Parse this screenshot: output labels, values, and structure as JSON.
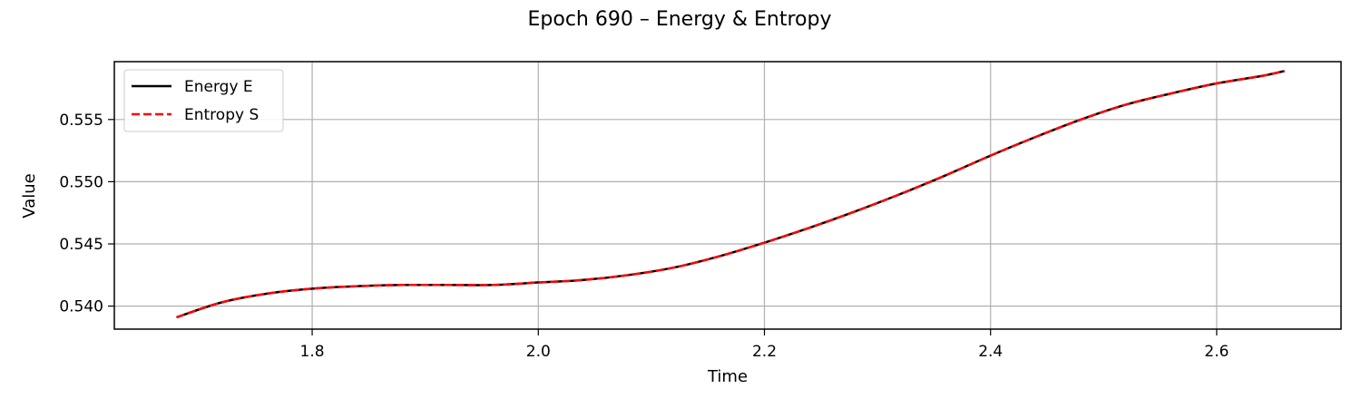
{
  "chart_data": {
    "type": "line",
    "title": "Epoch 690 – Energy & Entropy",
    "xlabel": "Time",
    "ylabel": "Value",
    "xlim": [
      1.625,
      2.71
    ],
    "ylim": [
      0.53815,
      0.55965
    ],
    "xticks": [
      1.8,
      2.0,
      2.2,
      2.4,
      2.6
    ],
    "xtick_labels": [
      "1.8",
      "2.0",
      "2.2",
      "2.4",
      "2.6"
    ],
    "yticks": [
      0.54,
      0.545,
      0.55,
      0.555
    ],
    "ytick_labels": [
      "0.540",
      "0.545",
      "0.550",
      "0.555"
    ],
    "grid": true,
    "legend_position": "upper left",
    "x": [
      1.68,
      1.72,
      1.76,
      1.8,
      1.84,
      1.88,
      1.92,
      1.96,
      2.0,
      2.04,
      2.08,
      2.12,
      2.16,
      2.2,
      2.24,
      2.28,
      2.32,
      2.36,
      2.4,
      2.44,
      2.48,
      2.52,
      2.56,
      2.6,
      2.64,
      2.66
    ],
    "series": [
      {
        "name": "Energy E",
        "color": "#000000",
        "style": "solid",
        "values": [
          0.5391,
          0.5403,
          0.541,
          0.5414,
          0.5416,
          0.5417,
          0.5417,
          0.5417,
          0.5419,
          0.5421,
          0.5425,
          0.5431,
          0.544,
          0.5451,
          0.5463,
          0.5476,
          0.549,
          0.5505,
          0.5521,
          0.5536,
          0.555,
          0.5562,
          0.5571,
          0.5579,
          0.5585,
          0.5589
        ]
      },
      {
        "name": "Entropy S",
        "color": "#ff0000",
        "style": "dashed",
        "values": [
          0.5391,
          0.5403,
          0.541,
          0.5414,
          0.5416,
          0.5417,
          0.5417,
          0.5417,
          0.5419,
          0.5421,
          0.5425,
          0.5431,
          0.544,
          0.5451,
          0.5463,
          0.5476,
          0.549,
          0.5505,
          0.5521,
          0.5536,
          0.555,
          0.5562,
          0.5571,
          0.5579,
          0.5585,
          0.5589
        ]
      }
    ]
  }
}
